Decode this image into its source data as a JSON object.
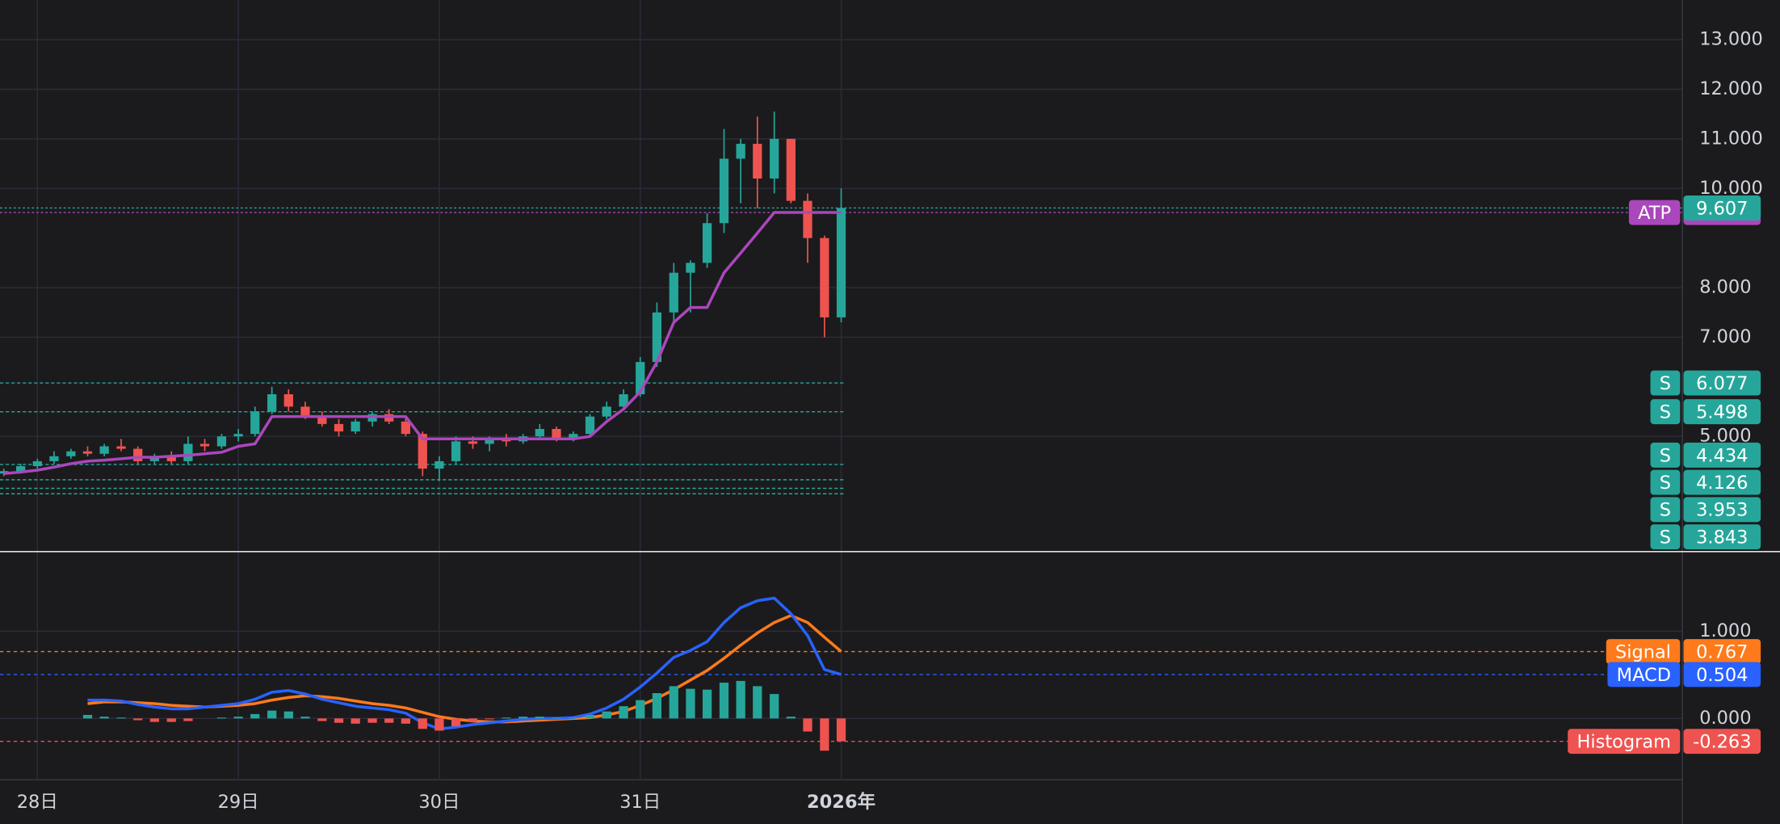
{
  "chart_data": [
    {
      "type": "candlestick",
      "x": [
        -0.167,
        -0.083,
        0,
        0.083,
        0.167,
        0.25,
        0.333,
        0.417,
        0.5,
        0.583,
        0.667,
        0.75,
        0.833,
        0.917,
        1,
        1.083,
        1.167,
        1.25,
        1.333,
        1.417,
        1.5,
        1.583,
        1.667,
        1.75,
        1.833,
        1.917,
        2,
        2.083,
        2.167,
        2.25,
        2.333,
        2.417,
        2.5,
        2.583,
        2.667,
        2.75,
        2.833,
        2.917,
        3,
        3.083,
        3.167,
        3.25,
        3.333,
        3.417,
        3.5,
        3.583,
        3.667,
        3.75,
        3.833,
        3.917,
        4
      ],
      "open": [
        4.25,
        4.3,
        4.4,
        4.5,
        4.6,
        4.7,
        4.65,
        4.8,
        4.75,
        4.5,
        4.6,
        4.5,
        4.85,
        4.8,
        5.0,
        5.05,
        5.5,
        5.85,
        5.6,
        5.4,
        5.25,
        5.1,
        5.3,
        5.45,
        5.3,
        5.05,
        4.35,
        4.5,
        4.9,
        4.85,
        4.95,
        4.9,
        5.0,
        5.15,
        4.95,
        5.05,
        5.4,
        5.6,
        5.85,
        6.5,
        7.5,
        8.3,
        8.5,
        9.3,
        10.6,
        10.9,
        10.2,
        11.0,
        9.75,
        9.0,
        7.4
      ],
      "high": [
        4.35,
        4.45,
        4.55,
        4.7,
        4.75,
        4.8,
        4.85,
        4.95,
        4.8,
        4.65,
        4.7,
        5.0,
        4.95,
        5.05,
        5.15,
        5.6,
        6.0,
        5.95,
        5.7,
        5.5,
        5.35,
        5.35,
        5.5,
        5.55,
        5.4,
        5.1,
        4.6,
        5.0,
        5.0,
        5.0,
        5.05,
        5.05,
        5.25,
        5.2,
        5.1,
        5.45,
        5.7,
        5.95,
        6.6,
        7.7,
        8.5,
        8.55,
        9.5,
        11.2,
        11.0,
        11.45,
        11.55,
        11.0,
        9.9,
        9.05,
        10.0
      ],
      "low": [
        4.2,
        4.25,
        4.35,
        4.45,
        4.55,
        4.6,
        4.6,
        4.7,
        4.45,
        4.45,
        4.45,
        4.45,
        4.7,
        4.75,
        4.9,
        5.0,
        5.45,
        5.5,
        5.35,
        5.2,
        5.0,
        5.05,
        5.2,
        5.25,
        5.0,
        4.2,
        4.1,
        4.45,
        4.75,
        4.7,
        4.8,
        4.85,
        4.95,
        4.9,
        4.9,
        5.0,
        5.35,
        5.55,
        5.8,
        6.4,
        7.3,
        7.5,
        8.4,
        9.1,
        9.7,
        9.6,
        9.9,
        9.7,
        8.5,
        7.0,
        7.3
      ],
      "close": [
        4.3,
        4.4,
        4.5,
        4.6,
        4.7,
        4.65,
        4.8,
        4.75,
        4.5,
        4.6,
        4.5,
        4.85,
        4.8,
        5.0,
        5.05,
        5.5,
        5.85,
        5.6,
        5.4,
        5.25,
        5.1,
        5.3,
        5.45,
        5.3,
        5.05,
        4.35,
        4.5,
        4.9,
        4.85,
        4.95,
        4.9,
        5.0,
        5.15,
        4.95,
        5.05,
        5.4,
        5.6,
        5.85,
        6.5,
        7.5,
        8.3,
        8.5,
        9.3,
        10.6,
        10.9,
        10.2,
        11.0,
        9.75,
        9.0,
        7.4,
        9.607
      ],
      "up_color": "#26a69a",
      "down_color": "#ef5350",
      "series": [
        {
          "name": "ATP",
          "color": "#ab47bc",
          "values": [
            4.25,
            4.28,
            4.32,
            4.38,
            4.45,
            4.5,
            4.52,
            4.55,
            4.58,
            4.58,
            4.6,
            4.62,
            4.65,
            4.68,
            4.8,
            4.85,
            5.4,
            5.4,
            5.4,
            5.4,
            5.4,
            5.4,
            5.4,
            5.4,
            5.4,
            4.95,
            4.95,
            4.95,
            4.95,
            4.95,
            4.95,
            4.95,
            4.95,
            4.95,
            4.95,
            5.0,
            5.3,
            5.55,
            5.9,
            6.5,
            7.3,
            7.6,
            7.6,
            8.3,
            8.7,
            9.1,
            9.515,
            9.515,
            9.515,
            9.515,
            9.515
          ]
        }
      ],
      "supports": [
        {
          "label": "S",
          "value": 6.077
        },
        {
          "label": "S",
          "value": 5.498
        },
        {
          "label": "S",
          "value": 4.434
        },
        {
          "label": "S",
          "value": 4.126
        },
        {
          "label": "S",
          "value": 3.953
        },
        {
          "label": "S",
          "value": 3.843
        }
      ],
      "support_color": "#26a69a",
      "xlim": [
        -0.186,
        8.186
      ],
      "xticks": [
        {
          "value": 0,
          "label": "28日"
        },
        {
          "value": 1,
          "label": "29日"
        },
        {
          "value": 2,
          "label": "30日"
        },
        {
          "value": 3,
          "label": "31日"
        },
        {
          "value": 4,
          "label": "2026年",
          "bold": true
        }
      ],
      "ylim": [
        2.7,
        13.8
      ],
      "yticks": [
        {
          "value": 13,
          "label": "13.000"
        },
        {
          "value": 12,
          "label": "12.000"
        },
        {
          "value": 11,
          "label": "11.000"
        },
        {
          "value": 10,
          "label": "10.000"
        },
        {
          "value": 8,
          "label": "8.000"
        },
        {
          "value": 7,
          "label": "7.000"
        },
        {
          "value": 5,
          "label": "5.000"
        }
      ],
      "grid": true
    },
    {
      "type": "macd",
      "x": [
        -0.167,
        -0.083,
        0,
        0.083,
        0.167,
        0.25,
        0.333,
        0.417,
        0.5,
        0.583,
        0.667,
        0.75,
        0.833,
        0.917,
        1,
        1.083,
        1.167,
        1.25,
        1.333,
        1.417,
        1.5,
        1.583,
        1.667,
        1.75,
        1.833,
        1.917,
        2,
        2.083,
        2.167,
        2.25,
        2.333,
        2.417,
        2.5,
        2.583,
        2.667,
        2.75,
        2.833,
        2.917,
        3,
        3.083,
        3.167,
        3.25,
        3.333,
        3.417,
        3.5,
        3.583,
        3.667,
        3.75,
        3.833,
        3.917,
        4
      ],
      "xlim": [
        -0.186,
        8.186
      ],
      "ylim": [
        -0.69,
        1.9
      ],
      "yticks": [
        {
          "value": 1,
          "label": "1.000"
        },
        {
          "value": 0,
          "label": "0.000"
        }
      ],
      "grid": true,
      "series": [
        {
          "name": "Signal",
          "color": "#ff7a1a",
          "kind": "line",
          "values": [
            null,
            null,
            null,
            null,
            null,
            0.17,
            0.19,
            0.19,
            0.18,
            0.17,
            0.15,
            0.14,
            0.13,
            0.14,
            0.15,
            0.17,
            0.21,
            0.24,
            0.26,
            0.25,
            0.23,
            0.2,
            0.17,
            0.15,
            0.12,
            0.07,
            0.02,
            -0.01,
            -0.03,
            -0.04,
            -0.04,
            -0.03,
            -0.02,
            -0.01,
            0,
            0.01,
            0.04,
            0.08,
            0.15,
            0.23,
            0.33,
            0.44,
            0.55,
            0.69,
            0.84,
            0.98,
            1.1,
            1.18,
            1.1,
            0.93,
            0.767
          ]
        },
        {
          "name": "MACD",
          "color": "#2962ff",
          "kind": "line",
          "values": [
            null,
            null,
            null,
            null,
            null,
            0.21,
            0.21,
            0.2,
            0.16,
            0.13,
            0.11,
            0.11,
            0.13,
            0.15,
            0.17,
            0.22,
            0.3,
            0.32,
            0.28,
            0.22,
            0.18,
            0.14,
            0.12,
            0.1,
            0.06,
            -0.05,
            -0.12,
            -0.1,
            -0.07,
            -0.05,
            -0.03,
            -0.01,
            0,
            0,
            0.01,
            0.05,
            0.12,
            0.22,
            0.36,
            0.52,
            0.7,
            0.78,
            0.88,
            1.1,
            1.27,
            1.35,
            1.38,
            1.2,
            0.95,
            0.56,
            0.504
          ]
        },
        {
          "name": "Histogram",
          "kind": "histogram",
          "positive_color": "#26a69a",
          "negative_color": "#ef5350",
          "values": [
            null,
            null,
            null,
            null,
            null,
            0.04,
            0.02,
            0.01,
            -0.02,
            -0.04,
            -0.04,
            -0.03,
            0,
            0.01,
            0.02,
            0.05,
            0.09,
            0.08,
            0.02,
            -0.03,
            -0.05,
            -0.06,
            -0.05,
            -0.05,
            -0.06,
            -0.12,
            -0.14,
            -0.09,
            -0.04,
            -0.01,
            0.01,
            0.02,
            0.02,
            0.01,
            0.01,
            0.04,
            0.08,
            0.14,
            0.21,
            0.29,
            0.37,
            0.34,
            0.33,
            0.41,
            0.43,
            0.37,
            0.28,
            0.02,
            -0.15,
            -0.37,
            -0.263
          ]
        }
      ]
    }
  ]
}
